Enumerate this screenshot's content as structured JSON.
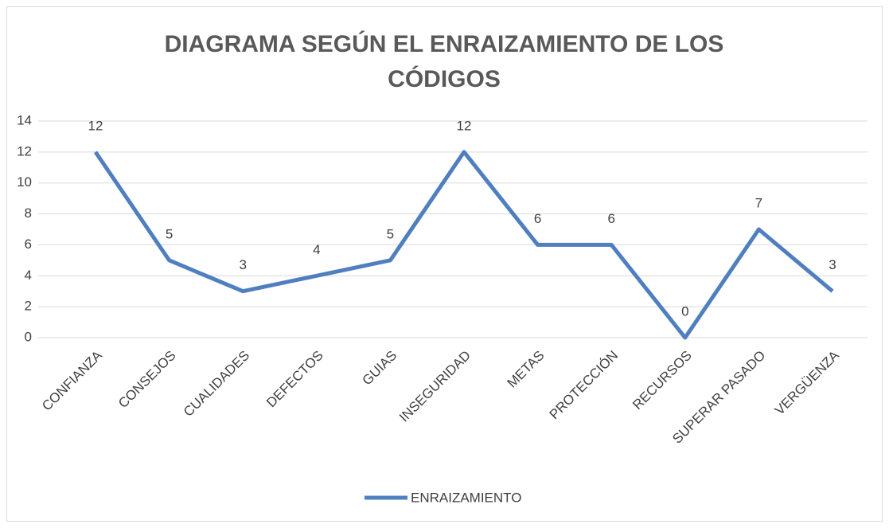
{
  "chart_data": {
    "type": "line",
    "title": "DIAGRAMA SEGÚN EL ENRAIZAMIENTO DE LOS CÓDIGOS",
    "categories": [
      "CONFIANZA",
      "CONSEJOS",
      "CUALIDADES",
      "DEFECTOS",
      "GUIAS",
      "INSEGURIDAD",
      "METAS",
      "PROTECCIÓN",
      "RECURSOS",
      "SUPERAR PASADO",
      "VERGÜENZA"
    ],
    "series": [
      {
        "name": "ENRAIZAMIENTO",
        "color": "#4f7fbf",
        "values": [
          12,
          5,
          3,
          4,
          5,
          12,
          6,
          6,
          0,
          7,
          3
        ]
      }
    ],
    "ylim": [
      0,
      14
    ],
    "yticks": [
      0,
      2,
      4,
      6,
      8,
      10,
      12,
      14
    ],
    "grid": true,
    "legend": "bottom",
    "data_labels": true
  }
}
